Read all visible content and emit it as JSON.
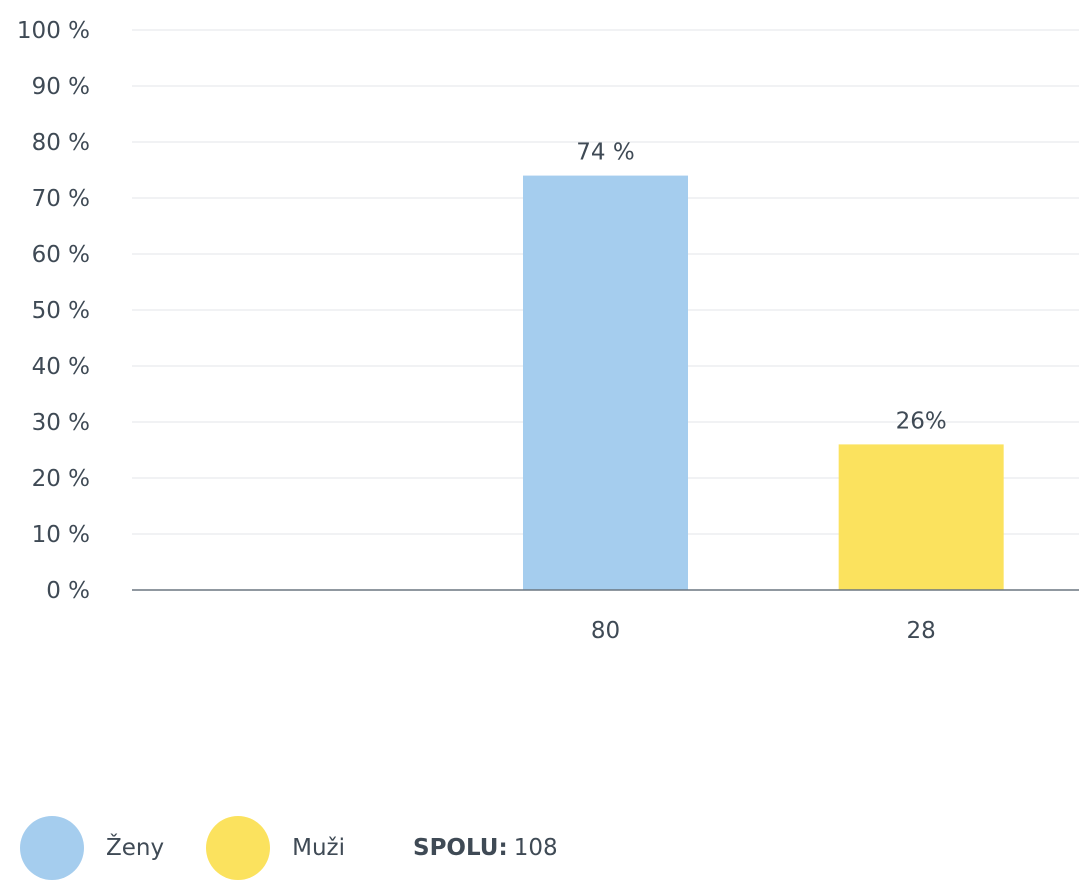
{
  "chart_data": {
    "type": "bar",
    "categories": [
      "80",
      "28"
    ],
    "values": [
      74,
      26
    ],
    "data_labels": [
      "74 %",
      "26%"
    ],
    "ylim": [
      0,
      100
    ],
    "yticks": [
      0,
      10,
      20,
      30,
      40,
      50,
      60,
      70,
      80,
      90,
      100
    ],
    "ytick_labels": [
      "0 %",
      "10 %",
      "20 %",
      "30 %",
      "40 %",
      "50 %",
      "60 %",
      "70 %",
      "80 %",
      "90 %",
      "100 %"
    ],
    "grid": true,
    "legend_position": "bottom-left",
    "series_colors": [
      "#a5cdee",
      "#fbe25e"
    ]
  },
  "legend": {
    "items": [
      {
        "label": "Ženy",
        "color": "#a5cdee"
      },
      {
        "label": "Muži",
        "color": "#fbe25e"
      }
    ],
    "total_label": "SPOLU:",
    "total_value": "108"
  }
}
